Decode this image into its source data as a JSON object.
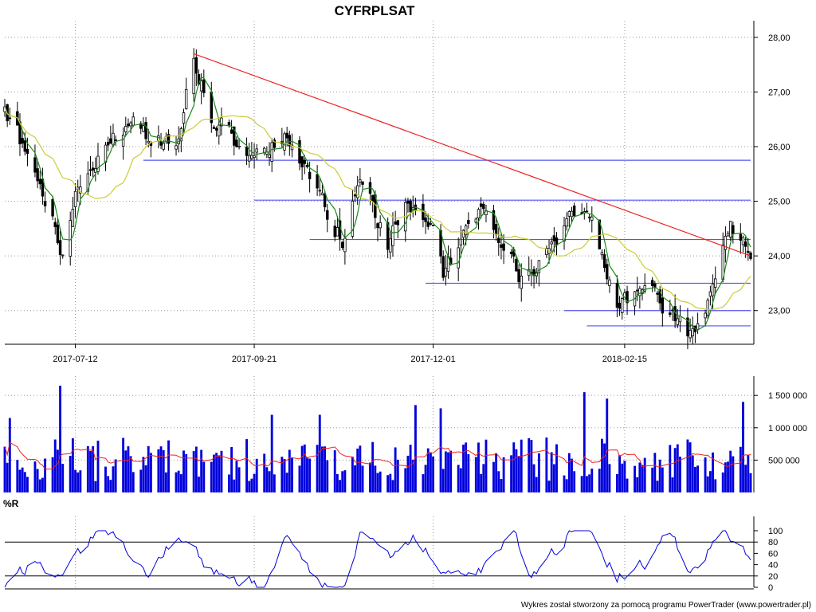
{
  "header": {
    "title": "CYFRPLSAT"
  },
  "footer": {
    "credit": "Wykres został stworzony za pomocą programu PowerTrader (www.powertrader.pl)"
  },
  "indicator": {
    "label": "%R"
  },
  "colors": {
    "candle_up": "#ffffff",
    "candle_down": "#000000",
    "candle_outline": "#000000",
    "ma_short": "#1a8a1a",
    "ma_long": "#cccc33",
    "trendline": "#ee2222",
    "support": "#5555ee",
    "volume_bar": "#0000dd",
    "volume_ma": "#ee2222",
    "willr_line": "#0000dd",
    "grid": "#999999"
  },
  "chart_data": [
    {
      "type": "candlestick",
      "title": "CYFRPLSAT",
      "date_range": [
        "2017-06-14",
        "2018-04-06"
      ],
      "x_tick_labels": [
        "2017-07-12",
        "2017-09-21",
        "2017-12-01",
        "2018-02-15"
      ],
      "y_tick_labels": [
        "28,00",
        "27,00",
        "26,00",
        "25,00",
        "24,00",
        "23,00"
      ],
      "ylim": [
        22.5,
        28.1
      ],
      "grid": true,
      "notable_points": [
        {
          "date": "2017-06-14",
          "close": 26.6
        },
        {
          "date": "2017-06-30",
          "close": 25.2
        },
        {
          "date": "2017-07-07",
          "close": 24.1
        },
        {
          "date": "2017-07-12",
          "close": 25.3
        },
        {
          "date": "2017-08-01",
          "close": 26.4
        },
        {
          "date": "2017-08-21",
          "close": 26.0
        },
        {
          "date": "2017-08-28",
          "close": 27.7
        },
        {
          "date": "2017-09-04",
          "close": 26.5
        },
        {
          "date": "2017-09-21",
          "close": 25.9
        },
        {
          "date": "2017-10-04",
          "close": 26.3
        },
        {
          "date": "2017-10-20",
          "close": 24.8
        },
        {
          "date": "2017-10-26",
          "close": 24.4
        },
        {
          "date": "2017-11-02",
          "close": 25.5
        },
        {
          "date": "2017-11-13",
          "close": 24.2
        },
        {
          "date": "2017-11-20",
          "close": 24.9
        },
        {
          "date": "2017-12-01",
          "close": 24.5
        },
        {
          "date": "2017-12-05",
          "close": 23.7
        },
        {
          "date": "2017-12-20",
          "close": 24.7
        },
        {
          "date": "2018-01-05",
          "close": 23.6
        },
        {
          "date": "2018-01-22",
          "close": 24.5
        },
        {
          "date": "2018-02-01",
          "close": 24.9
        },
        {
          "date": "2018-02-12",
          "close": 23.0
        },
        {
          "date": "2018-02-27",
          "close": 23.3
        },
        {
          "date": "2018-03-13",
          "close": 22.6
        },
        {
          "date": "2018-03-20",
          "close": 23.2
        },
        {
          "date": "2018-03-29",
          "close": 24.6
        },
        {
          "date": "2018-04-06",
          "close": 24.1
        }
      ],
      "moving_averages": [
        {
          "color": "#1a8a1a"
        },
        {
          "color": "#cccc33"
        }
      ],
      "trendline": {
        "from": {
          "date": "2017-08-28",
          "value": 27.7
        },
        "to": {
          "date": "2018-04-06",
          "value": 24.0
        }
      },
      "support_lines": [
        {
          "value": 25.75,
          "from": "2017-08-08",
          "to": "2018-04-06"
        },
        {
          "value": 25.02,
          "from": "2017-09-21",
          "to": "2018-04-06"
        },
        {
          "value": 24.3,
          "from": "2017-10-13",
          "to": "2018-04-06"
        },
        {
          "value": 23.5,
          "from": "2017-11-28",
          "to": "2018-04-06"
        },
        {
          "value": 23.0,
          "from": "2018-01-22",
          "to": "2018-04-06"
        },
        {
          "value": 22.72,
          "from": "2018-01-31",
          "to": "2018-04-06"
        }
      ]
    },
    {
      "type": "bar",
      "y_tick_labels": [
        "1 500 000",
        "1 000 000",
        "500 000"
      ],
      "ylim": [
        0,
        1650000
      ],
      "grid": true,
      "moving_average": {
        "color": "#ee2222",
        "typical_level": 500000
      },
      "peaks": [
        {
          "date": "2017-06-16",
          "value": 1150000
        },
        {
          "date": "2017-07-06",
          "value": 1650000
        },
        {
          "date": "2017-09-28",
          "value": 1200000
        },
        {
          "date": "2017-10-17",
          "value": 1200000
        },
        {
          "date": "2017-11-24",
          "value": 1350000
        },
        {
          "date": "2017-12-04",
          "value": 1300000
        },
        {
          "date": "2018-01-30",
          "value": 1550000
        },
        {
          "date": "2018-02-08",
          "value": 1450000
        },
        {
          "date": "2018-04-03",
          "value": 1400000
        }
      ]
    },
    {
      "type": "line",
      "title": "%R",
      "y_tick_labels": [
        "100",
        "80",
        "60",
        "40",
        "20",
        "0"
      ],
      "ylim": [
        0,
        100
      ],
      "reference_lines": [
        80,
        20
      ],
      "grid": true,
      "series": [
        {
          "color": "#0000dd",
          "points": [
            {
              "date": "2017-06-14",
              "value": 2
            },
            {
              "date": "2017-06-26",
              "value": 52
            },
            {
              "date": "2017-07-06",
              "value": 8
            },
            {
              "date": "2017-07-13",
              "value": 60
            },
            {
              "date": "2017-07-21",
              "value": 100
            },
            {
              "date": "2017-07-28",
              "value": 92
            },
            {
              "date": "2017-08-10",
              "value": 30
            },
            {
              "date": "2017-08-22",
              "value": 95
            },
            {
              "date": "2017-09-04",
              "value": 30
            },
            {
              "date": "2017-09-14",
              "value": 15
            },
            {
              "date": "2017-09-25",
              "value": 5
            },
            {
              "date": "2017-10-04",
              "value": 88
            },
            {
              "date": "2017-10-16",
              "value": 10
            },
            {
              "date": "2017-10-26",
              "value": 2
            },
            {
              "date": "2017-11-03",
              "value": 98
            },
            {
              "date": "2017-11-15",
              "value": 50
            },
            {
              "date": "2017-11-24",
              "value": 85
            },
            {
              "date": "2017-12-06",
              "value": 25
            },
            {
              "date": "2017-12-20",
              "value": 25
            },
            {
              "date": "2018-01-02",
              "value": 100
            },
            {
              "date": "2018-01-09",
              "value": 20
            },
            {
              "date": "2018-01-23",
              "value": 90
            },
            {
              "date": "2018-02-02",
              "value": 100
            },
            {
              "date": "2018-02-12",
              "value": 15
            },
            {
              "date": "2018-02-22",
              "value": 35
            },
            {
              "date": "2018-03-05",
              "value": 95
            },
            {
              "date": "2018-03-13",
              "value": 25
            },
            {
              "date": "2018-03-26",
              "value": 100
            },
            {
              "date": "2018-04-06",
              "value": 50
            }
          ]
        }
      ]
    }
  ]
}
